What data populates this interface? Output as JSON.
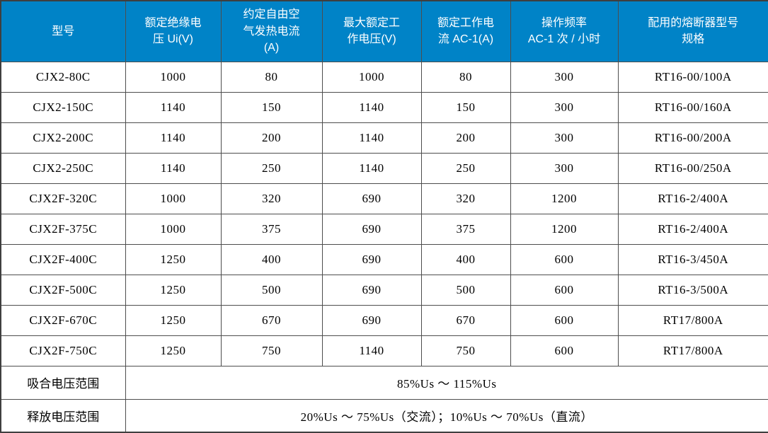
{
  "table": {
    "columns": [
      {
        "label": "型号"
      },
      {
        "label": "额定绝缘电\n压 Ui(V)"
      },
      {
        "label": "约定自由空\n气发热电流\n(A)"
      },
      {
        "label": "最大额定工\n作电压(V)"
      },
      {
        "label": "额定工作电\n流 AC-1(A)"
      },
      {
        "label": "操作频率\nAC-1 次 / 小时"
      },
      {
        "label": "配用的熔断器型号\n规格"
      }
    ],
    "rows": [
      [
        "CJX2-80C",
        "1000",
        "80",
        "1000",
        "80",
        "300",
        "RT16-00/100A"
      ],
      [
        "CJX2-150C",
        "1140",
        "150",
        "1140",
        "150",
        "300",
        "RT16-00/160A"
      ],
      [
        "CJX2-200C",
        "1140",
        "200",
        "1140",
        "200",
        "300",
        "RT16-00/200A"
      ],
      [
        "CJX2-250C",
        "1140",
        "250",
        "1140",
        "250",
        "300",
        "RT16-00/250A"
      ],
      [
        "CJX2F-320C",
        "1000",
        "320",
        "690",
        "320",
        "1200",
        "RT16-2/400A"
      ],
      [
        "CJX2F-375C",
        "1000",
        "375",
        "690",
        "375",
        "1200",
        "RT16-2/400A"
      ],
      [
        "CJX2F-400C",
        "1250",
        "400",
        "690",
        "400",
        "600",
        "RT16-3/450A"
      ],
      [
        "CJX2F-500C",
        "1250",
        "500",
        "690",
        "500",
        "600",
        "RT16-3/500A"
      ],
      [
        "CJX2F-670C",
        "1250",
        "670",
        "690",
        "670",
        "600",
        "RT17/800A"
      ],
      [
        "CJX2F-750C",
        "1250",
        "750",
        "1140",
        "750",
        "600",
        "RT17/800A"
      ]
    ],
    "footer_rows": [
      {
        "label": "吸合电压范围",
        "value": "85%Us ～ 115%Us"
      },
      {
        "label": "释放电压范围",
        "value": "20%Us ～ 75%Us（交流）；10%Us ～ 70%Us（直流）"
      }
    ]
  },
  "colors": {
    "header_bg": "#0083C7",
    "header_text": "#FFFFFF",
    "grid_border": "#4D4D4D",
    "outer_border": "#3F3F3F",
    "body_text": "#000000",
    "body_bg": "#FFFFFF"
  }
}
